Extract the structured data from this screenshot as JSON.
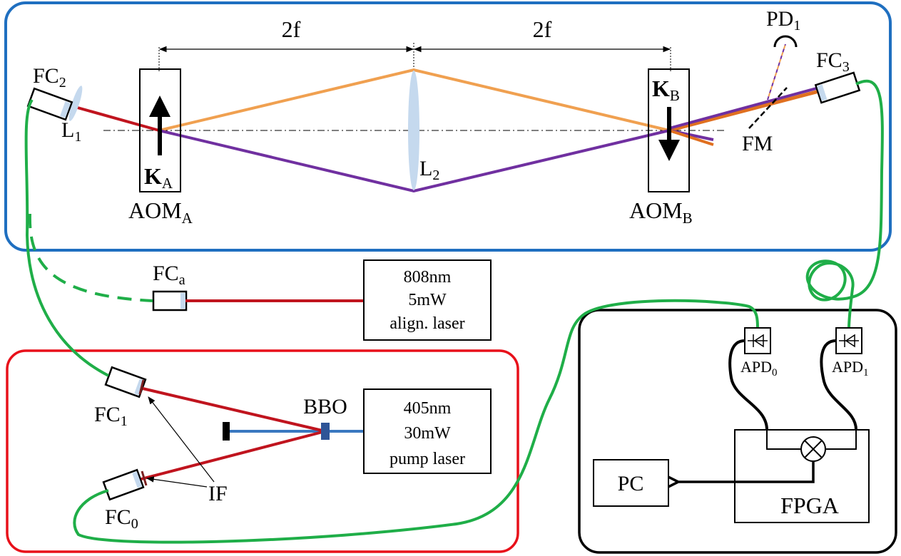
{
  "labels": {
    "dist_left": "2f",
    "dist_right": "2f",
    "fc2": "FC",
    "fc2_sub": "2",
    "l1": "L",
    "l1_sub": "1",
    "ka": "K",
    "ka_sub": "A",
    "aoma": "AOM",
    "aoma_sub": "A",
    "l2": "L",
    "l2_sub": "2",
    "kb": "K",
    "kb_sub": "B",
    "aomb": "AOM",
    "aomb_sub": "B",
    "pd1": "PD",
    "pd1_sub": "1",
    "fc3": "FC",
    "fc3_sub": "3",
    "fm": "FM",
    "fca": "FC",
    "fca_sub": "a",
    "fc1": "FC",
    "fc1_sub": "1",
    "fc0": "FC",
    "fc0_sub": "0",
    "bbo": "BBO",
    "if": "IF",
    "apd0": "APD",
    "apd0_sub": "0",
    "apd1": "APD",
    "apd1_sub": "1",
    "pc": "PC",
    "fpga": "FPGA"
  },
  "align_laser": {
    "line1": "808nm",
    "line2": "5mW",
    "line3": "align. laser"
  },
  "pump_laser": {
    "line1": "405nm",
    "line2": "30mW",
    "line3": "pump laser"
  },
  "colors": {
    "blue_frame": "#1f6fc0",
    "red_frame": "#e8101a",
    "red_beam": "#c0141e",
    "orange_beam": "#f0a050",
    "purple_beam": "#7030a0",
    "blue_beam": "#3a78c0",
    "fiber": "#1fae48",
    "lens": "#c5d9ee"
  }
}
